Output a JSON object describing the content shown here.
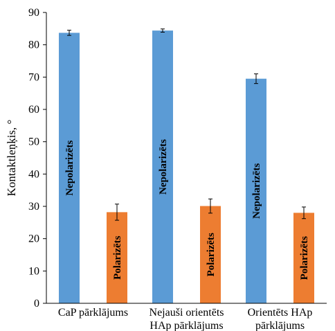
{
  "chart_data": {
    "type": "bar",
    "ylabel": "Kontaktleņķis, °",
    "ylim": [
      0,
      90
    ],
    "ytick_step": 10,
    "grid": false,
    "legend": "none",
    "categories": [
      {
        "lines": [
          "CaP pārklājums"
        ]
      },
      {
        "lines": [
          "Nejauši orientēts",
          "HAp pārklājums"
        ]
      },
      {
        "lines": [
          "Orientēts HAp",
          "pārklājums"
        ]
      }
    ],
    "series": [
      {
        "label": "Nepolarizēts",
        "color": "#5B9BD5",
        "values": [
          83.7,
          84.4,
          69.5
        ],
        "errors": [
          0.8,
          0.5,
          1.5
        ]
      },
      {
        "label": "Polarizēts",
        "color": "#ED7D31",
        "values": [
          28.2,
          30.1,
          28.0
        ],
        "errors": [
          2.5,
          2.2,
          1.8
        ]
      }
    ]
  }
}
